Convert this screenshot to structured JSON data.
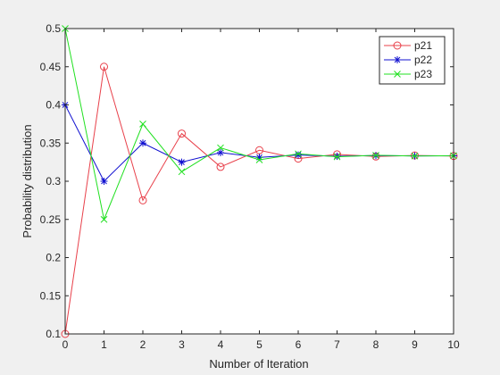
{
  "chart_data": {
    "type": "line",
    "xlabel": "Number of Iteration",
    "ylabel": "Probability distribution",
    "xlim": [
      0,
      10
    ],
    "ylim": [
      0.1,
      0.5
    ],
    "xticks": [
      0,
      1,
      2,
      3,
      4,
      5,
      6,
      7,
      8,
      9,
      10
    ],
    "yticks": [
      0.1,
      0.15,
      0.2,
      0.25,
      0.3,
      0.35,
      0.4,
      0.45,
      0.5
    ],
    "x": [
      0,
      1,
      2,
      3,
      4,
      5,
      6,
      7,
      8,
      9,
      10
    ],
    "grid": false,
    "legend_position": "top-right",
    "series": [
      {
        "name": "p21",
        "color": "#e8404a",
        "marker": "circle",
        "values": [
          0.1,
          0.45,
          0.275,
          0.3625,
          0.3188,
          0.3406,
          0.3297,
          0.3352,
          0.3324,
          0.3338,
          0.3331
        ]
      },
      {
        "name": "p22",
        "color": "#1010d0",
        "marker": "asterisk",
        "values": [
          0.4,
          0.3,
          0.35,
          0.325,
          0.3375,
          0.3313,
          0.3344,
          0.3328,
          0.3336,
          0.3332,
          0.3334
        ]
      },
      {
        "name": "p23",
        "color": "#20e020",
        "marker": "x",
        "values": [
          0.5,
          0.25,
          0.375,
          0.3125,
          0.3438,
          0.3281,
          0.3359,
          0.332,
          0.334,
          0.333,
          0.3335
        ]
      }
    ]
  }
}
